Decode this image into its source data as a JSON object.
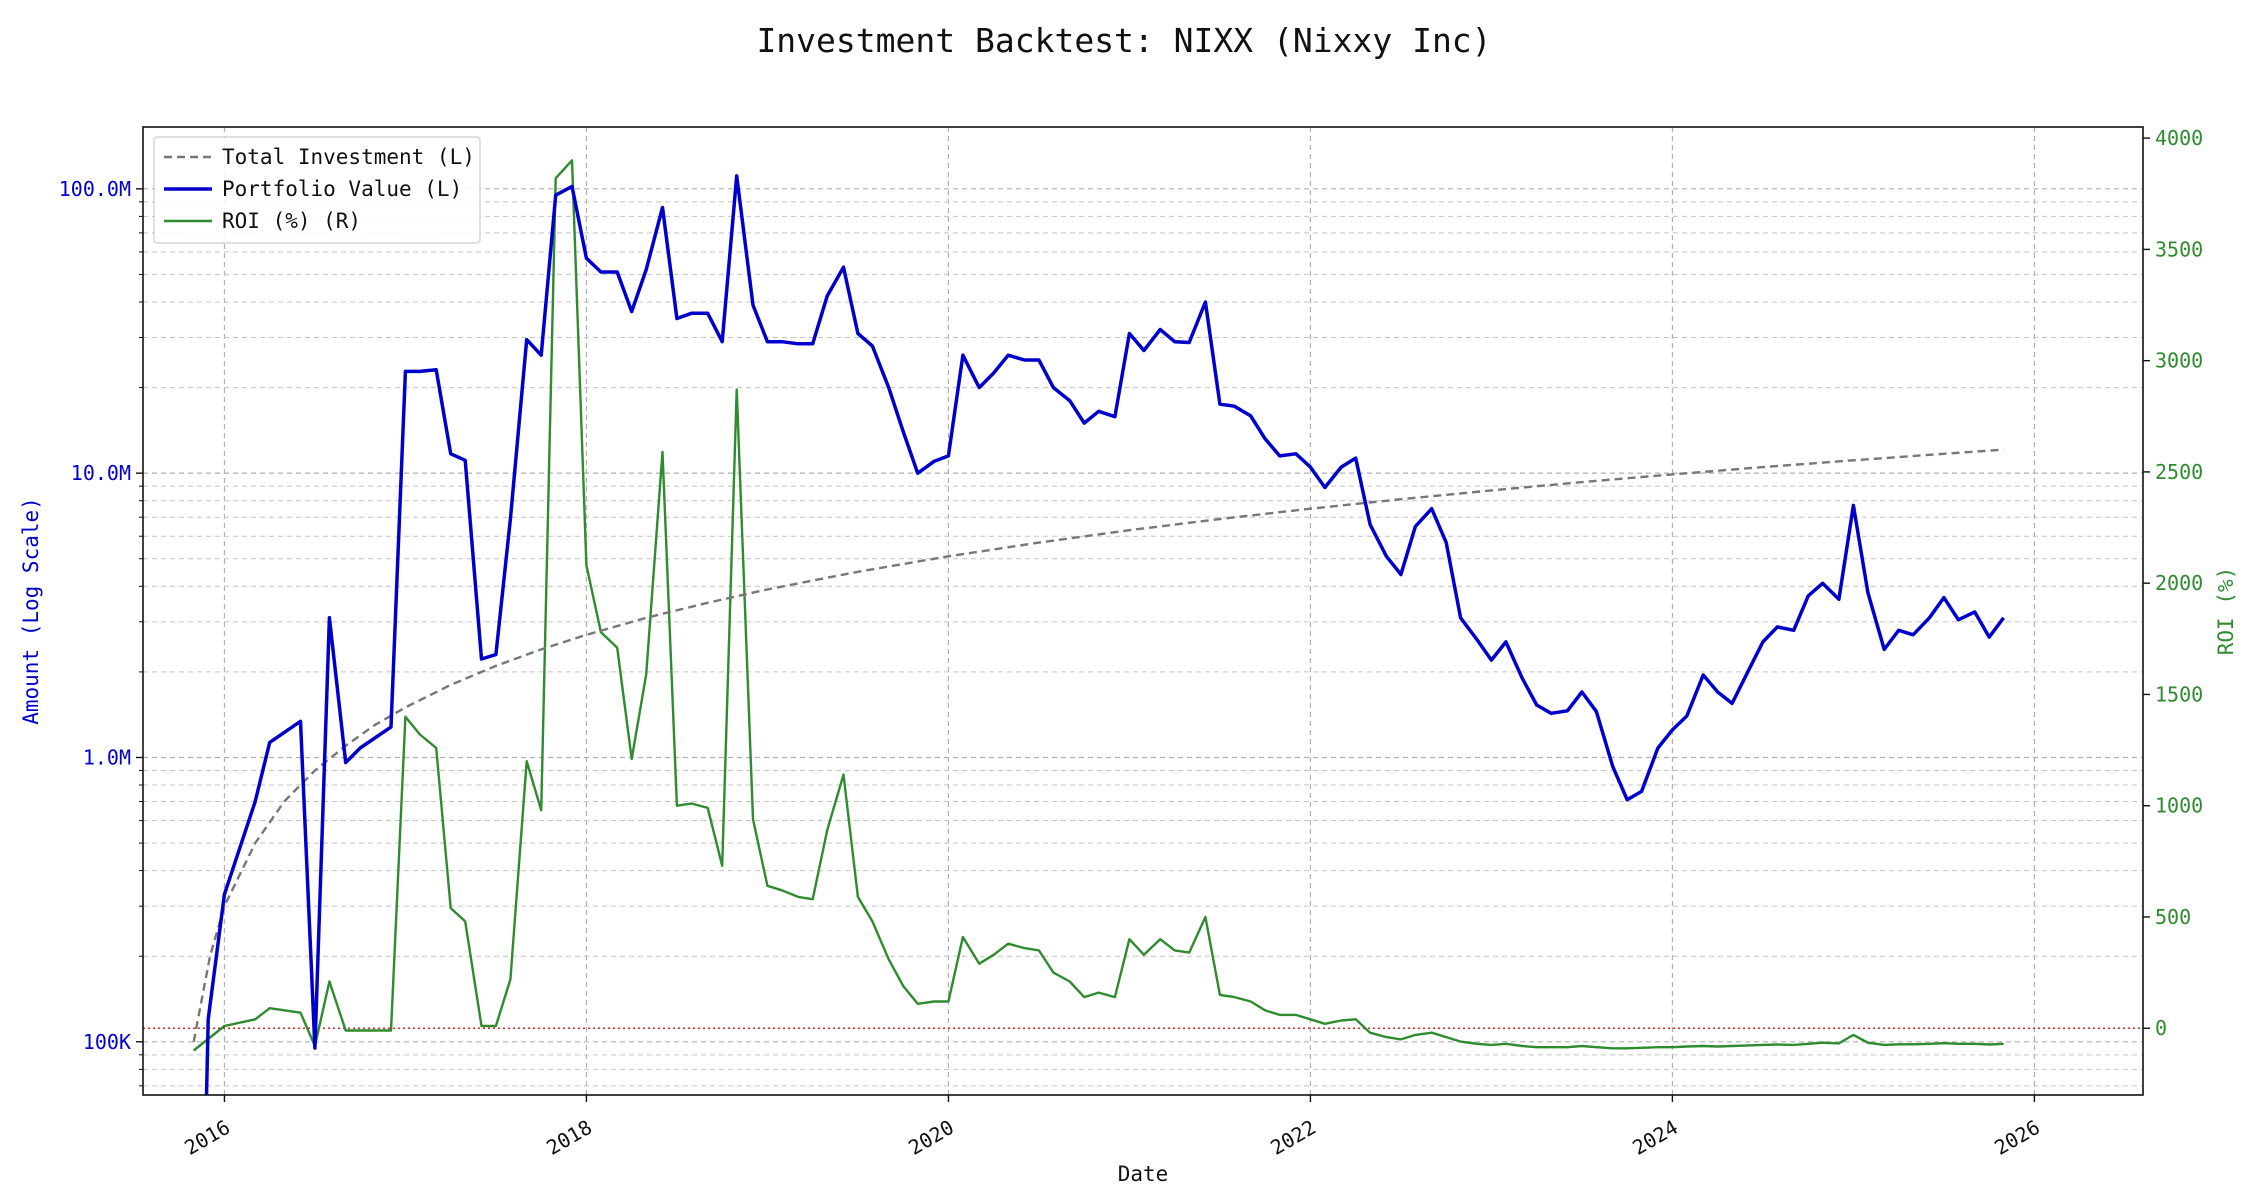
{
  "chart_data": {
    "type": "line",
    "title": "Investment Backtest: NIXX (Nixxy Inc)",
    "xlabel": "Date",
    "ylabel_left": "Amount (Log Scale)",
    "ylabel_right": "ROI (%)",
    "xlim": [
      2015.55,
      2026.6
    ],
    "ylim_left": [
      65000,
      165000000
    ],
    "ylim_right": [
      -300,
      4050
    ],
    "left_scale": "log",
    "grid": "both",
    "legend_position": "top-left",
    "x_ticks": [
      {
        "value": 2016,
        "label": "2016"
      },
      {
        "value": 2018,
        "label": "2018"
      },
      {
        "value": 2020,
        "label": "2020"
      },
      {
        "value": 2022,
        "label": "2022"
      },
      {
        "value": 2024,
        "label": "2024"
      },
      {
        "value": 2026,
        "label": "2026"
      }
    ],
    "y_left_ticks": [
      {
        "value": 100000,
        "label": "100K"
      },
      {
        "value": 1000000,
        "label": "1.0M"
      },
      {
        "value": 10000000,
        "label": "10.0M"
      },
      {
        "value": 100000000,
        "label": "100.0M"
      }
    ],
    "y_right_ticks": [
      {
        "value": 0,
        "label": "0"
      },
      {
        "value": 500,
        "label": "500"
      },
      {
        "value": 1000,
        "label": "1000"
      },
      {
        "value": 1500,
        "label": "1500"
      },
      {
        "value": 2000,
        "label": "2000"
      },
      {
        "value": 2500,
        "label": "2500"
      },
      {
        "value": 3000,
        "label": "3000"
      },
      {
        "value": 3500,
        "label": "3500"
      },
      {
        "value": 4000,
        "label": "4000"
      }
    ],
    "reference_line": {
      "axis": "right",
      "value": 0,
      "color": "#d62728"
    },
    "series": [
      {
        "name": "Total Investment (L)",
        "axis": "left",
        "color": "#777777",
        "style": "dashed",
        "x": [
          2015.83,
          2015.92,
          2016.0,
          2016.17,
          2016.33,
          2016.5,
          2016.67,
          2016.83,
          2017.0,
          2017.25,
          2017.5,
          2017.75,
          2018.0,
          2018.33,
          2018.67,
          2019.0,
          2019.5,
          2020.0,
          2020.5,
          2021.0,
          2021.5,
          2022.0,
          2022.5,
          2023.0,
          2023.5,
          2024.0,
          2024.5,
          2025.0,
          2025.5,
          2025.83
        ],
        "values": [
          100000,
          200000,
          300000,
          500000,
          700000,
          900000,
          1100000,
          1300000,
          1500000,
          1800000,
          2100000,
          2400000,
          2700000,
          3100000,
          3500000,
          3900000,
          4500000,
          5100000,
          5700000,
          6300000,
          6900000,
          7500000,
          8100000,
          8700000,
          9300000,
          9900000,
          10500000,
          11100000,
          11700000,
          12100000
        ]
      },
      {
        "name": "Portfolio Value (L)",
        "axis": "left",
        "color": "#0000cc",
        "style": "solid",
        "x": [
          2015.9,
          2015.91,
          2016.0,
          2016.17,
          2016.25,
          2016.42,
          2016.5,
          2016.58,
          2016.67,
          2016.75,
          2016.92,
          2017.0,
          2017.08,
          2017.17,
          2017.25,
          2017.33,
          2017.42,
          2017.5,
          2017.58,
          2017.67,
          2017.75,
          2017.83,
          2017.92,
          2018.0,
          2018.08,
          2018.17,
          2018.25,
          2018.33,
          2018.42,
          2018.5,
          2018.58,
          2018.67,
          2018.75,
          2018.83,
          2018.92,
          2019.0,
          2019.08,
          2019.17,
          2019.25,
          2019.33,
          2019.42,
          2019.5,
          2019.58,
          2019.67,
          2019.75,
          2019.83,
          2019.92,
          2020.0,
          2020.08,
          2020.17,
          2020.25,
          2020.33,
          2020.42,
          2020.5,
          2020.58,
          2020.67,
          2020.75,
          2020.83,
          2020.92,
          2021.0,
          2021.08,
          2021.17,
          2021.25,
          2021.33,
          2021.42,
          2021.5,
          2021.58,
          2021.67,
          2021.75,
          2021.83,
          2021.92,
          2022.0,
          2022.08,
          2022.17,
          2022.25,
          2022.33,
          2022.42,
          2022.5,
          2022.58,
          2022.67,
          2022.75,
          2022.83,
          2022.92,
          2023.0,
          2023.08,
          2023.17,
          2023.25,
          2023.33,
          2023.42,
          2023.5,
          2023.58,
          2023.67,
          2023.75,
          2023.83,
          2023.92,
          2024.0,
          2024.08,
          2024.17,
          2024.25,
          2024.33,
          2024.42,
          2024.5,
          2024.58,
          2024.67,
          2024.75,
          2024.83,
          2024.92,
          2025.0,
          2025.08,
          2025.17,
          2025.25,
          2025.33,
          2025.42,
          2025.5,
          2025.58,
          2025.67,
          2025.75,
          2025.83
        ],
        "values": [
          60000,
          120000,
          330000,
          700000,
          1130000,
          1340000,
          95000,
          3100000,
          960000,
          1080000,
          1280000,
          22800000,
          22800000,
          23100000,
          11700000,
          11100000,
          2220000,
          2300000,
          6900000,
          29500000,
          26000000,
          95000000,
          102000000,
          57000000,
          51000000,
          51000000,
          37000000,
          52000000,
          86000000,
          35000000,
          36500000,
          36500000,
          29000000,
          111000000,
          39000000,
          29000000,
          29000000,
          28500000,
          28500000,
          42000000,
          53000000,
          31000000,
          28000000,
          20000000,
          14000000,
          10000000,
          11000000,
          11500000,
          26000000,
          20000000,
          22500000,
          26000000,
          25000000,
          25000000,
          20000000,
          18000000,
          15000000,
          16500000,
          15800000,
          31000000,
          27000000,
          32000000,
          29000000,
          28800000,
          40000000,
          17500000,
          17200000,
          15900000,
          13200000,
          11500000,
          11700000,
          10500000,
          8900000,
          10500000,
          11300000,
          6600000,
          5100000,
          4400000,
          6500000,
          7500000,
          5700000,
          3100000,
          2600000,
          2200000,
          2550000,
          1900000,
          1530000,
          1430000,
          1460000,
          1700000,
          1450000,
          930000,
          710000,
          760000,
          1080000,
          1250000,
          1400000,
          1950000,
          1700000,
          1550000,
          2020000,
          2550000,
          2880000,
          2800000,
          3700000,
          4100000,
          3600000,
          7700000,
          3800000,
          2400000,
          2800000,
          2700000,
          3100000,
          3650000,
          3050000,
          3250000,
          2650000,
          3100000
        ]
      },
      {
        "name": "ROI (%) (R)",
        "axis": "right",
        "color": "#2e8b2e",
        "style": "solid",
        "x": [
          2015.83,
          2016.0,
          2016.17,
          2016.25,
          2016.42,
          2016.5,
          2016.58,
          2016.67,
          2016.75,
          2016.92,
          2017.0,
          2017.08,
          2017.17,
          2017.25,
          2017.33,
          2017.42,
          2017.5,
          2017.58,
          2017.67,
          2017.75,
          2017.83,
          2017.92,
          2018.0,
          2018.08,
          2018.17,
          2018.25,
          2018.33,
          2018.42,
          2018.5,
          2018.58,
          2018.67,
          2018.75,
          2018.83,
          2018.92,
          2019.0,
          2019.08,
          2019.17,
          2019.25,
          2019.33,
          2019.42,
          2019.5,
          2019.58,
          2019.67,
          2019.75,
          2019.83,
          2019.92,
          2020.0,
          2020.08,
          2020.17,
          2020.25,
          2020.33,
          2020.42,
          2020.5,
          2020.58,
          2020.67,
          2020.75,
          2020.83,
          2020.92,
          2021.0,
          2021.08,
          2021.17,
          2021.25,
          2021.33,
          2021.42,
          2021.5,
          2021.58,
          2021.67,
          2021.75,
          2021.83,
          2021.92,
          2022.0,
          2022.08,
          2022.17,
          2022.25,
          2022.33,
          2022.42,
          2022.5,
          2022.58,
          2022.67,
          2022.75,
          2022.83,
          2022.92,
          2023.0,
          2023.08,
          2023.17,
          2023.25,
          2023.33,
          2023.42,
          2023.5,
          2023.58,
          2023.67,
          2023.75,
          2023.83,
          2023.92,
          2024.0,
          2024.08,
          2024.17,
          2024.25,
          2024.33,
          2024.42,
          2024.5,
          2024.58,
          2024.67,
          2024.75,
          2024.83,
          2024.92,
          2025.0,
          2025.08,
          2025.17,
          2025.25,
          2025.33,
          2025.42,
          2025.5,
          2025.58,
          2025.67,
          2025.75,
          2025.83
        ],
        "values": [
          -100,
          10,
          40,
          90,
          70,
          -80,
          210,
          -10,
          -10,
          -10,
          1400,
          1320,
          1260,
          540,
          480,
          10,
          10,
          220,
          1200,
          980,
          3820,
          3900,
          2080,
          1780,
          1710,
          1210,
          1590,
          2590,
          1000,
          1010,
          990,
          730,
          2870,
          940,
          640,
          620,
          590,
          580,
          890,
          1140,
          590,
          480,
          310,
          190,
          110,
          120,
          120,
          410,
          290,
          330,
          380,
          360,
          350,
          250,
          210,
          140,
          160,
          140,
          400,
          330,
          400,
          350,
          340,
          500,
          150,
          140,
          120,
          80,
          60,
          60,
          40,
          20,
          35,
          40,
          -20,
          -40,
          -50,
          -30,
          -20,
          -40,
          -60,
          -70,
          -75,
          -70,
          -80,
          -85,
          -85,
          -85,
          -80,
          -85,
          -90,
          -90,
          -88,
          -85,
          -85,
          -82,
          -80,
          -82,
          -80,
          -77,
          -75,
          -73,
          -75,
          -70,
          -65,
          -68,
          -30,
          -65,
          -75,
          -72,
          -72,
          -70,
          -67,
          -70,
          -70,
          -73,
          -70
        ]
      }
    ]
  }
}
